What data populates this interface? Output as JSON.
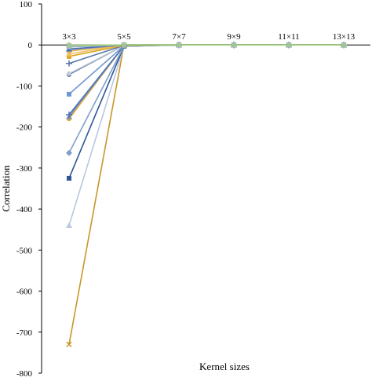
{
  "chart_data": {
    "type": "line",
    "title": "",
    "xlabel": "Kernel sizes",
    "ylabel": "Correlation",
    "categories": [
      "3×3",
      "5×5",
      "7×7",
      "9×9",
      "11×11",
      "13×13"
    ],
    "ylim": [
      -800,
      100
    ],
    "yticks": [
      100,
      0,
      -100,
      -200,
      -300,
      -400,
      -500,
      -600,
      -700,
      -800
    ],
    "grid": false,
    "legend": "none",
    "series": [
      {
        "values": [
          -730,
          0,
          0,
          0,
          0,
          0
        ],
        "color": "#c8962a",
        "marker": "x"
      },
      {
        "values": [
          -440,
          -3,
          0,
          0,
          0,
          0
        ],
        "color": "#b8c8e0",
        "marker": "triangle"
      },
      {
        "values": [
          -325,
          -3,
          0,
          0,
          0,
          0
        ],
        "color": "#2f5597",
        "marker": "square"
      },
      {
        "values": [
          -263,
          -3,
          0,
          0,
          0,
          0
        ],
        "color": "#7f9fc8",
        "marker": "diamond"
      },
      {
        "values": [
          -180,
          -2,
          0,
          0,
          0,
          0
        ],
        "color": "#e3a72f",
        "marker": "circle"
      },
      {
        "values": [
          -175,
          -2,
          0,
          0,
          0,
          0
        ],
        "color": "#7d93b3",
        "marker": "triangle"
      },
      {
        "values": [
          -170,
          -2,
          0,
          0,
          0,
          0
        ],
        "color": "#4a74b8",
        "marker": "plus"
      },
      {
        "values": [
          -120,
          -2,
          0,
          0,
          0,
          0
        ],
        "color": "#6f97d0",
        "marker": "square"
      },
      {
        "values": [
          -72,
          -1,
          0,
          0,
          0,
          0
        ],
        "color": "#3c5a8c",
        "marker": "circle"
      },
      {
        "values": [
          -70,
          -1,
          0,
          0,
          0,
          0
        ],
        "color": "#c0ccd8",
        "marker": "circle"
      },
      {
        "values": [
          -45,
          -1,
          0,
          0,
          0,
          0
        ],
        "color": "#5575a8",
        "marker": "plus"
      },
      {
        "values": [
          -28,
          -1,
          0,
          0,
          0,
          0
        ],
        "color": "#d9a520",
        "marker": "square"
      },
      {
        "values": [
          -22,
          0,
          0,
          0,
          0,
          0
        ],
        "color": "#f0c060",
        "marker": "triangle"
      },
      {
        "values": [
          -15,
          0,
          0,
          0,
          0,
          0
        ],
        "color": "#f2b33c",
        "marker": "circle"
      },
      {
        "values": [
          -12,
          0,
          0,
          0,
          0,
          0
        ],
        "color": "#8aa2c8",
        "marker": "x"
      },
      {
        "values": [
          -10,
          0,
          0,
          0,
          0,
          0
        ],
        "color": "#4e6fae",
        "marker": "triangle"
      },
      {
        "values": [
          -5,
          0,
          0,
          0,
          0,
          0
        ],
        "color": "#90aed6",
        "marker": "square"
      },
      {
        "values": [
          -3,
          0,
          0,
          0,
          0,
          0
        ],
        "color": "#a8b8c8",
        "marker": "diamond"
      },
      {
        "values": [
          -1,
          0,
          0,
          0,
          0,
          0
        ],
        "color": "#9ccf6e",
        "marker": "x"
      }
    ]
  }
}
